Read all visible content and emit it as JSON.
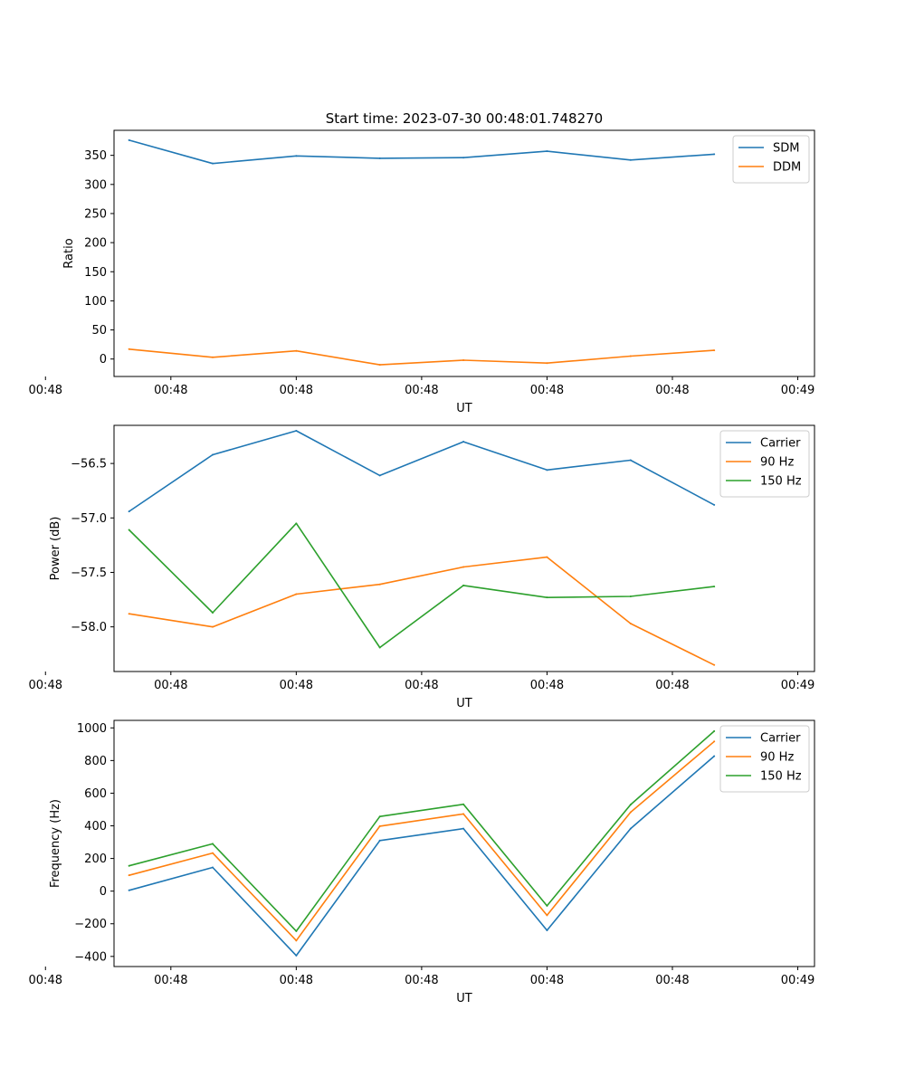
{
  "chart_data": [
    {
      "type": "line",
      "title": "Start time: 2023-07-30 00:48:01.748270",
      "xlabel": "UT",
      "ylabel": "Ratio",
      "x": [
        1,
        2,
        3,
        4,
        5,
        6,
        7,
        8
      ],
      "xlim": [
        0.82,
        9.2
      ],
      "xticks": [
        0,
        1.5,
        3,
        4.5,
        6,
        7.5,
        9
      ],
      "xtick_labels": [
        "00:48",
        "00:48",
        "00:48",
        "00:48",
        "00:48",
        "00:48",
        "00:49"
      ],
      "ylim": [
        -30,
        393
      ],
      "yticks": [
        0,
        50,
        100,
        150,
        200,
        250,
        300,
        350
      ],
      "ytick_labels": [
        "0",
        "50",
        "100",
        "150",
        "200",
        "250",
        "300",
        "350"
      ],
      "legend_position": "top-right",
      "series": [
        {
          "name": "SDM",
          "color": "#1f77b4",
          "values": [
            376,
            336,
            349,
            345,
            346,
            357,
            342,
            352
          ]
        },
        {
          "name": "DDM",
          "color": "#ff7f0e",
          "values": [
            17,
            3,
            14,
            -10,
            -2,
            -7,
            5,
            15
          ]
        }
      ]
    },
    {
      "type": "line",
      "title": "",
      "xlabel": "UT",
      "ylabel": "Power (dB)",
      "x": [
        1,
        2,
        3,
        4,
        5,
        6,
        7,
        8
      ],
      "xlim": [
        0.82,
        9.2
      ],
      "xticks": [
        0,
        1.5,
        3,
        4.5,
        6,
        7.5,
        9
      ],
      "xtick_labels": [
        "00:48",
        "00:48",
        "00:48",
        "00:48",
        "00:48",
        "00:48",
        "00:49"
      ],
      "ylim": [
        -58.41,
        -56.15
      ],
      "yticks": [
        -58.0,
        -57.5,
        -57.0,
        -56.5
      ],
      "ytick_labels": [
        "−58.0",
        "−57.5",
        "−57.0",
        "−56.5"
      ],
      "legend_position": "top-right",
      "series": [
        {
          "name": "Carrier",
          "color": "#1f77b4",
          "values": [
            -56.94,
            -56.42,
            -56.2,
            -56.61,
            -56.3,
            -56.56,
            -56.47,
            -56.88
          ]
        },
        {
          "name": "90 Hz",
          "color": "#ff7f0e",
          "values": [
            -57.88,
            -58.0,
            -57.7,
            -57.61,
            -57.45,
            -57.36,
            -57.97,
            -58.35
          ]
        },
        {
          "name": "150 Hz",
          "color": "#2ca02c",
          "values": [
            -57.11,
            -57.87,
            -57.05,
            -58.19,
            -57.62,
            -57.73,
            -57.72,
            -57.63
          ]
        }
      ]
    },
    {
      "type": "line",
      "title": "",
      "xlabel": "UT",
      "ylabel": "Frequency (Hz)",
      "x": [
        1,
        2,
        3,
        4,
        5,
        6,
        7,
        8
      ],
      "xlim": [
        0.82,
        9.2
      ],
      "xticks": [
        0,
        1.5,
        3,
        4.5,
        6,
        7.5,
        9
      ],
      "xtick_labels": [
        "00:48",
        "00:48",
        "00:48",
        "00:48",
        "00:48",
        "00:48",
        "00:49"
      ],
      "ylim": [
        -462,
        1046
      ],
      "yticks": [
        -400,
        -200,
        0,
        200,
        400,
        600,
        800,
        1000
      ],
      "ytick_labels": [
        "−400",
        "−200",
        "0",
        "200",
        "400",
        "600",
        "800",
        "1000"
      ],
      "legend_position": "top-right",
      "series": [
        {
          "name": "Carrier",
          "color": "#1f77b4",
          "values": [
            5,
            145,
            -395,
            310,
            383,
            -240,
            383,
            827
          ]
        },
        {
          "name": "90 Hz",
          "color": "#ff7f0e",
          "values": [
            97,
            233,
            -303,
            398,
            473,
            -148,
            483,
            917
          ]
        },
        {
          "name": "150 Hz",
          "color": "#2ca02c",
          "values": [
            155,
            290,
            -245,
            457,
            532,
            -90,
            530,
            980
          ]
        }
      ]
    }
  ]
}
